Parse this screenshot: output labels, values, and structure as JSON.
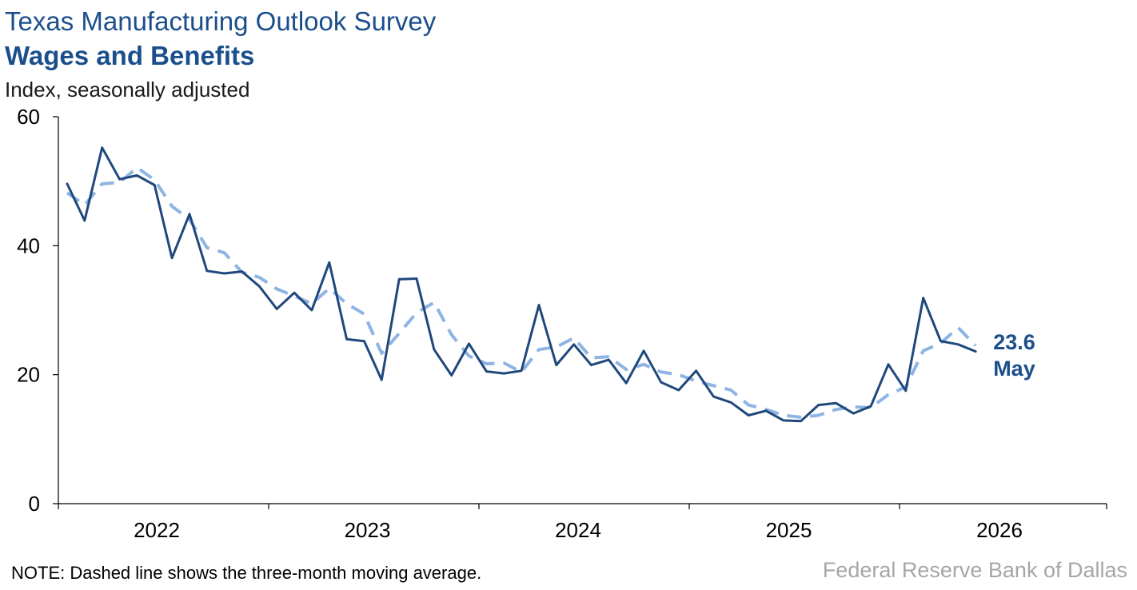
{
  "chart_data": {
    "type": "line",
    "title": "Texas Manufacturing Outlook Survey",
    "subtitle": "Wages and Benefits",
    "ylabel": "Index, seasonally adjusted",
    "ylim": [
      0,
      60
    ],
    "yticks": [
      0,
      20,
      40,
      60
    ],
    "x_start": "2021-11",
    "xtick_labels": [
      "2022",
      "2023",
      "2024",
      "2025",
      "2026"
    ],
    "grid": false,
    "series": [
      {
        "style": "solid",
        "color": "#1f487c",
        "values": [
          49.6,
          43.9,
          55.2,
          50.3,
          50.9,
          49.4,
          38.1,
          44.9,
          36.1,
          35.7,
          36.0,
          33.7,
          30.2,
          32.7,
          30.0,
          37.4,
          25.5,
          25.2,
          19.2,
          34.8,
          34.9,
          23.9,
          19.9,
          24.8,
          20.5,
          20.2,
          20.6,
          30.8,
          21.5,
          24.7,
          21.5,
          22.3,
          18.7,
          23.7,
          18.8,
          17.6,
          20.6,
          16.6,
          15.7,
          13.7,
          14.4,
          12.9,
          12.8,
          15.3,
          15.6,
          14.0,
          15.1,
          21.6,
          17.5,
          31.9,
          25.2,
          24.7,
          23.6
        ]
      },
      {
        "style": "dashed",
        "color": "#8eb4e3",
        "values": [
          48.2,
          46.3,
          49.6,
          49.8,
          52.1,
          50.2,
          46.1,
          44.1,
          39.7,
          38.9,
          35.9,
          35.1,
          33.3,
          32.2,
          31.0,
          33.4,
          31.0,
          29.4,
          23.3,
          26.4,
          29.6,
          31.2,
          26.2,
          22.9,
          21.7,
          21.8,
          20.4,
          23.9,
          24.3,
          25.7,
          22.6,
          22.8,
          20.8,
          21.6,
          20.4,
          20.0,
          19.0,
          18.3,
          17.6,
          15.3,
          14.6,
          13.7,
          13.4,
          13.7,
          14.6,
          15.0,
          14.9,
          16.9,
          18.1,
          23.7,
          24.9,
          27.3,
          24.5
        ]
      }
    ],
    "annotation": {
      "value": "23.6",
      "label": "May"
    }
  },
  "note": "NOTE: Dashed line shows the three-month moving average.",
  "source": "Federal Reserve Bank of Dallas"
}
